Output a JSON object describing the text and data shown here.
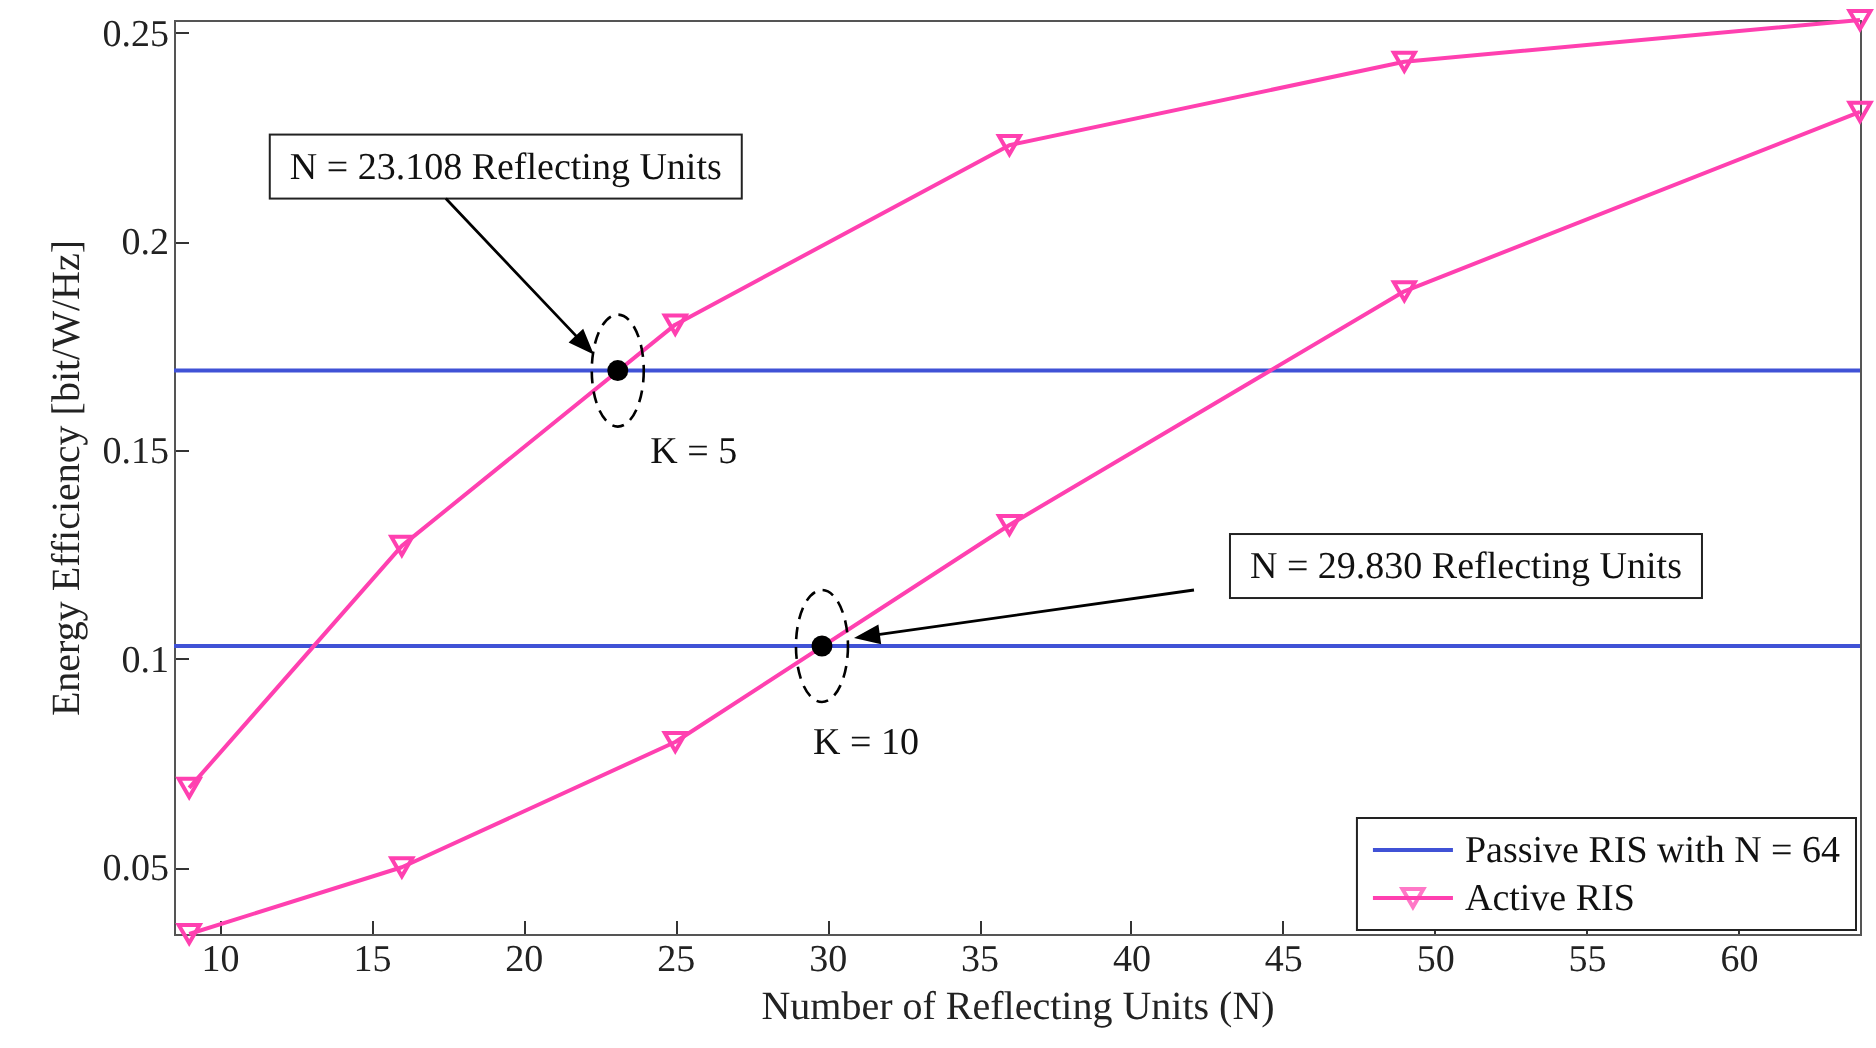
{
  "chart_data": {
    "type": "line",
    "xlabel": "Number of Reflecting Units (N)",
    "ylabel": "Energy Efficiency [bit/W/Hz]",
    "xlim": [
      8.5,
      64
    ],
    "ylim": [
      0.034,
      0.253
    ],
    "xticks": [
      10,
      15,
      20,
      25,
      30,
      35,
      40,
      45,
      50,
      55,
      60
    ],
    "yticks": [
      0.05,
      0.1,
      0.15,
      0.2,
      0.25
    ],
    "grid": false,
    "legend": "bottom right",
    "series": [
      {
        "name": "Passive RIS with N = 64",
        "color": "#4052d6",
        "x": [
          8.5,
          64
        ],
        "values": [
          0.169,
          0.169
        ],
        "marker": "none"
      },
      {
        "color": "#4052d6",
        "x": [
          8.5,
          64
        ],
        "values": [
          0.103,
          0.103
        ],
        "marker": "none"
      },
      {
        "name": "Active RIS",
        "color": "#ff40b0",
        "x": [
          9,
          16,
          25,
          36,
          49,
          64
        ],
        "values": [
          0.069,
          0.127,
          0.18,
          0.223,
          0.243,
          0.253
        ],
        "marker": "triangle"
      },
      {
        "color": "#ff40b0",
        "x": [
          9,
          16,
          25,
          36,
          49,
          64
        ],
        "values": [
          0.034,
          0.05,
          0.08,
          0.132,
          0.188,
          0.231
        ],
        "marker": "triangle"
      },
      {
        "type": "scatter",
        "color": "#000000",
        "x": [
          23.108,
          29.83
        ],
        "values": [
          0.169,
          0.103
        ],
        "marker": "circle"
      }
    ],
    "annotations": [
      "N = 23.108 Reflecting Units",
      "K = 5",
      "N = 29.830 Reflecting Units",
      "K = 10"
    ]
  }
}
